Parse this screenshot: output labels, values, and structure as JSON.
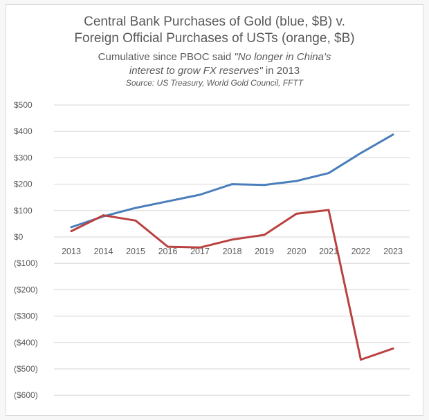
{
  "chart_data": {
    "type": "line",
    "title": "Central Bank Purchases of Gold (blue, $B) v.",
    "title_line2": "Foreign Official Purchases of USTs (orange, $B)",
    "subtitle_a": "Cumulative since PBOC said ",
    "subtitle_quote_a": "\"No longer in China's",
    "subtitle_quote_b": "interest to grow FX reserves\"",
    "subtitle_b": " in 2013",
    "source": "Source: US Treasury, World Gold Council, FFTT",
    "categories": [
      "2013",
      "2014",
      "2015",
      "2016",
      "2017",
      "2018",
      "2019",
      "2020",
      "2021",
      "2022",
      "2023"
    ],
    "series": [
      {
        "name": "Central Bank Purchases of Gold",
        "color": "#4a7ebb",
        "values": [
          37,
          78,
          110,
          135,
          160,
          200,
          197,
          212,
          242,
          318,
          388
        ]
      },
      {
        "name": "Foreign Official Purchases of USTs",
        "color": "#b9413f",
        "values": [
          22,
          82,
          62,
          -37,
          -40,
          -10,
          8,
          88,
          102,
          -465,
          -423
        ]
      }
    ],
    "ylim": [
      -600,
      500
    ],
    "yticks": [
      500,
      400,
      300,
      200,
      100,
      0,
      -100,
      -200,
      -300,
      -400,
      -500,
      -600
    ],
    "ytick_labels": [
      "$500",
      "$400",
      "$300",
      "$200",
      "$100",
      "$0",
      "($100)",
      "($200)",
      "($300)",
      "($400)",
      "($500)",
      "($600)"
    ],
    "xlabel": "",
    "ylabel": "",
    "grid": true
  }
}
